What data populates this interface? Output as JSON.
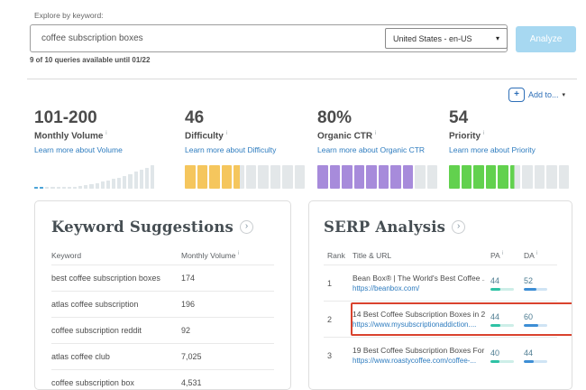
{
  "explore": {
    "label": "Explore by keyword:",
    "input_value": "coffee subscription boxes",
    "locale_selected": "United States - en-US",
    "analyze_label": "Analyze",
    "quota_text": "9 of 10 queries available until 01/22"
  },
  "add_to": {
    "label": "Add to..."
  },
  "icons": {
    "plus": "+",
    "caret": "▾",
    "chevron": "›",
    "info": "i"
  },
  "metrics": [
    {
      "id": "volume",
      "value": "101-200",
      "label": "Monthly Volume",
      "link": "Learn more about Volume",
      "viz": "histogram",
      "percent": null,
      "color": "#4aa3d8"
    },
    {
      "id": "difficulty",
      "value": "46",
      "label": "Difficulty",
      "link": "Learn more about Difficulty",
      "viz": "segments",
      "percent": 46,
      "color": "#f5c65d"
    },
    {
      "id": "ctr",
      "value": "80%",
      "label": "Organic CTR",
      "link": "Learn more about Organic CTR",
      "viz": "segments",
      "percent": 80,
      "color": "#a78bdb"
    },
    {
      "id": "priority",
      "value": "54",
      "label": "Priority",
      "link": "Learn more about Priority",
      "viz": "segments",
      "percent": 54,
      "color": "#62d14e"
    }
  ],
  "histogram": {
    "bar_count": 22,
    "highlight_count": 2,
    "bar_color": "#e0e6e9",
    "highlight_color": "#4aa3d8"
  },
  "segment_track_color": "#e3e7e9",
  "keyword_suggestions": {
    "title": "Keyword Suggestions",
    "columns": [
      "Keyword",
      "Monthly Volume"
    ],
    "rows": [
      {
        "keyword": "best coffee subscription boxes",
        "volume": "174"
      },
      {
        "keyword": "atlas coffee subscription",
        "volume": "196"
      },
      {
        "keyword": "coffee subscription reddit",
        "volume": "92"
      },
      {
        "keyword": "atlas coffee club",
        "volume": "7,025"
      },
      {
        "keyword": "coffee subscription box",
        "volume": "4,531"
      }
    ]
  },
  "serp_analysis": {
    "title": "SERP Analysis",
    "columns": [
      "Rank",
      "Title & URL",
      "PA",
      "DA"
    ],
    "pa_colors": {
      "track": "#cdeee8",
      "fill": "#2fc2a5"
    },
    "da_colors": {
      "track": "#cfe4f4",
      "fill": "#3d8ed5"
    },
    "rows": [
      {
        "rank": "1",
        "title": "Bean Box® | The World's Best Coffee ...",
        "url": "https://beanbox.com/",
        "pa": 44,
        "da": 52,
        "highlighted": false
      },
      {
        "rank": "2",
        "title": "14 Best Coffee Subscription Boxes in 2...",
        "url": "https://www.mysubscriptionaddiction....",
        "pa": 44,
        "da": 60,
        "highlighted": true
      },
      {
        "rank": "3",
        "title": "19 Best Coffee Subscription Boxes For ...",
        "url": "https://www.roastycoffee.com/coffee-...",
        "pa": 40,
        "da": 44,
        "highlighted": false
      }
    ]
  }
}
